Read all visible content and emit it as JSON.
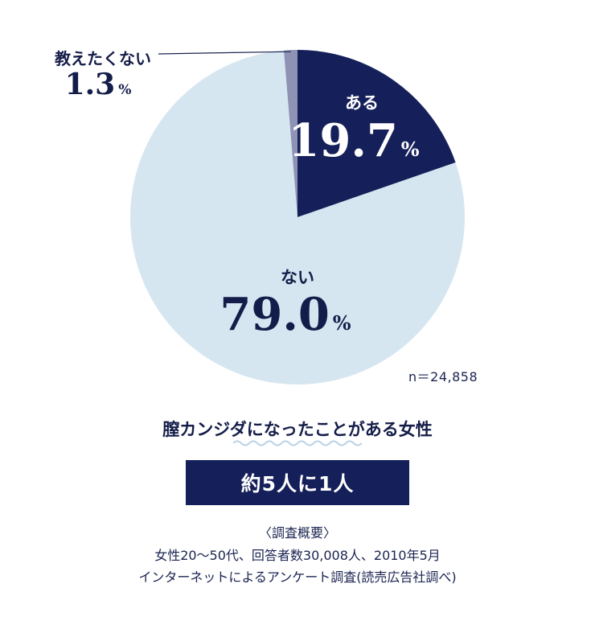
{
  "chart_data": {
    "type": "pie",
    "slices": [
      {
        "label": "ある",
        "value": 19.7,
        "display": "19.7",
        "unit": "%",
        "color": "#15205a",
        "text_color": "#ffffff"
      },
      {
        "label": "ない",
        "value": 79.0,
        "display": "79.0",
        "unit": "%",
        "color": "#d6e6f1",
        "text_color": "#141d49"
      },
      {
        "label": "教えたくない",
        "value": 1.3,
        "display": "1.3",
        "unit": "%",
        "color": "#8e92b5",
        "text_color": "#141d49"
      }
    ],
    "sample_size": "n＝24,858"
  },
  "headline": "膣カンジダになったことがある女性",
  "ratio": "約5人に1人",
  "survey": {
    "title": "〈調査概要〉",
    "line1": "女性20〜50代、回答者数30,008人、2010年5月",
    "line2": "インターネットによるアンケート調査(読売広告社調べ)"
  }
}
